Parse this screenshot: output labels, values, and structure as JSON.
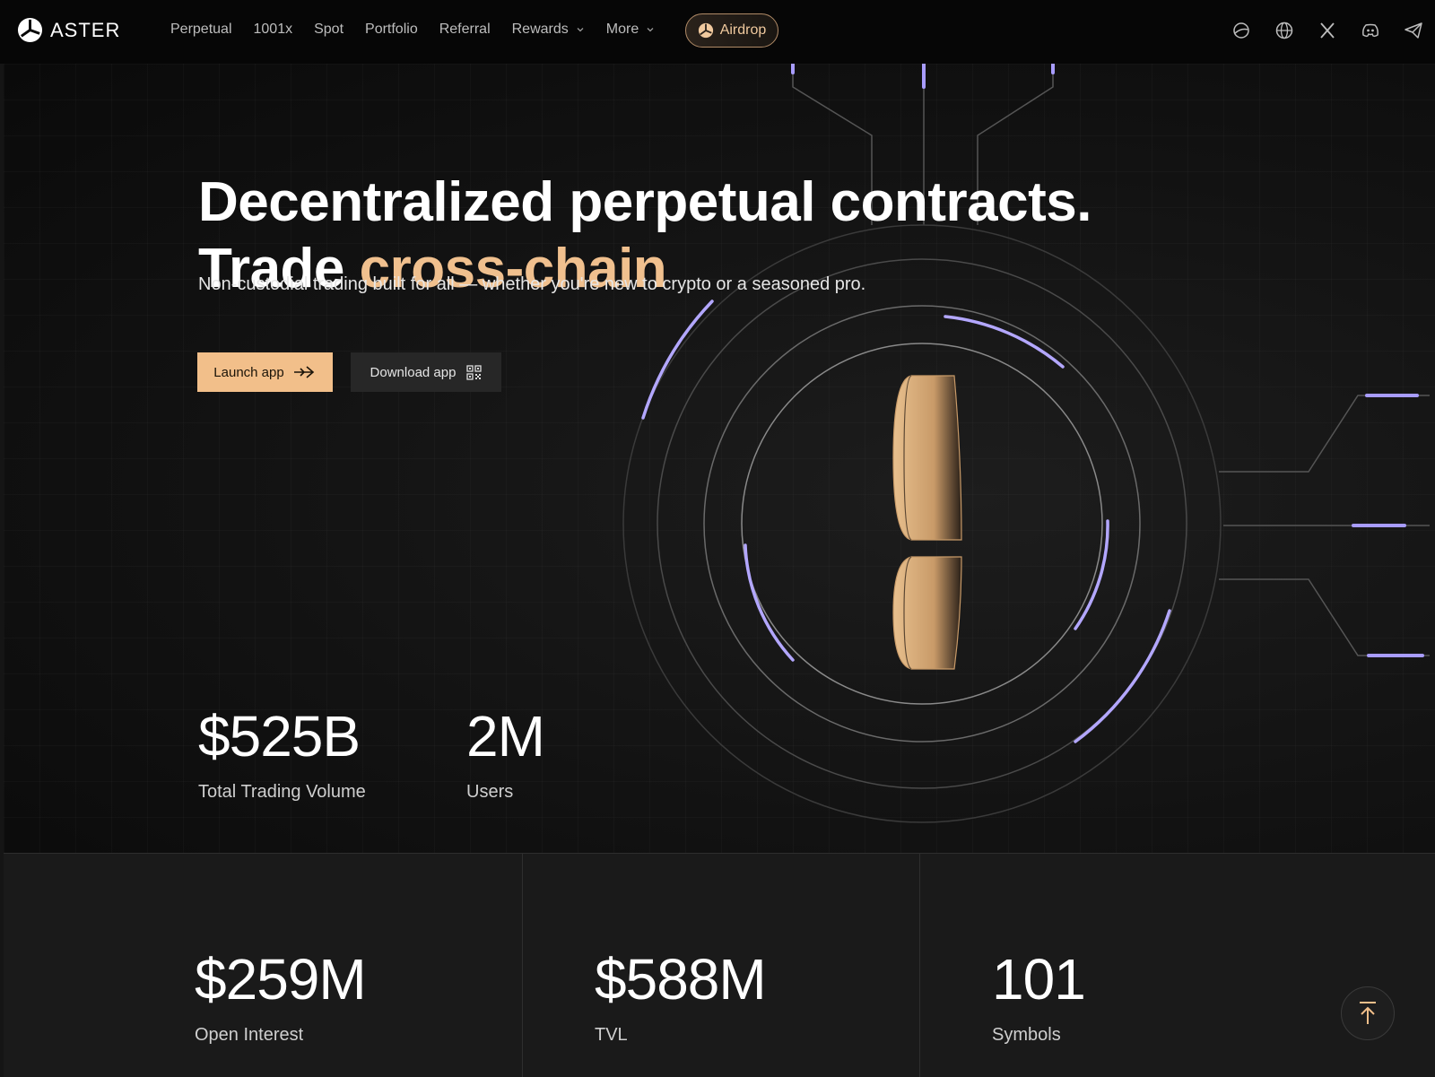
{
  "brand": {
    "name": "ASTER",
    "logo_icon": "aster-logo-icon"
  },
  "nav": {
    "items": [
      {
        "label": "Perpetual"
      },
      {
        "label": "1001x"
      },
      {
        "label": "Spot"
      },
      {
        "label": "Portfolio"
      },
      {
        "label": "Referral"
      },
      {
        "label": "Rewards",
        "has_dropdown": true
      },
      {
        "label": "More",
        "has_dropdown": true
      }
    ],
    "airdrop_label": "Airdrop"
  },
  "social_icons": [
    "chat-bubble-icon",
    "globe-icon",
    "x-icon",
    "discord-icon",
    "telegram-icon"
  ],
  "hero": {
    "headline_line1": "Decentralized perpetual contracts.",
    "headline_line2_prefix": "Trade ",
    "headline_line2_accent": "cross-chain",
    "subline": "Non-custodial trading built for all — whether you're new to crypto or a seasoned pro.",
    "launch_label": "Launch app",
    "download_label": "Download app"
  },
  "stats_top": [
    {
      "value": "$525B",
      "label": "Total Trading Volume"
    },
    {
      "value": "2M",
      "label": "Users"
    }
  ],
  "stats_bottom": [
    {
      "value": "$259M",
      "label": "Open Interest"
    },
    {
      "value": "$588M",
      "label": "TVL"
    },
    {
      "value": "101",
      "label": "Symbols"
    }
  ],
  "colors": {
    "accent": "#f2bf8a",
    "glow": "#a89cff",
    "background": "#151515"
  }
}
